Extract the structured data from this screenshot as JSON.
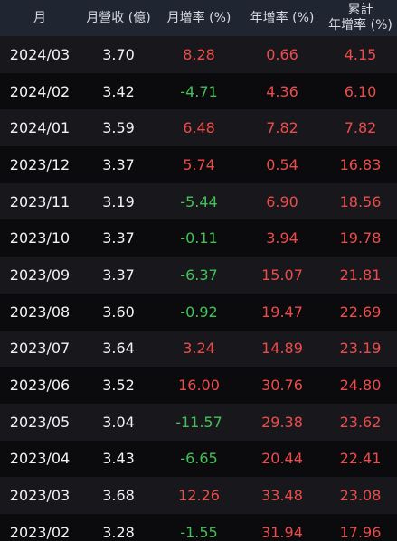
{
  "headers": {
    "month": "月",
    "revenue": "月營收 (億)",
    "mom": "月增率 (%)",
    "yoy": "年增率 (%)",
    "cum_line1": "累計",
    "cum_line2": "年增率 (%)"
  },
  "colors": {
    "positive": "#ee4b4b",
    "negative": "#43c257",
    "header_bg": "#1f2632",
    "row_alt_bg": "#18181c"
  },
  "rows": [
    {
      "date": "2024/03",
      "revenue": "3.70",
      "mom": "8.28",
      "yoy": "0.66",
      "cum": "4.15"
    },
    {
      "date": "2024/02",
      "revenue": "3.42",
      "mom": "-4.71",
      "yoy": "4.36",
      "cum": "6.10"
    },
    {
      "date": "2024/01",
      "revenue": "3.59",
      "mom": "6.48",
      "yoy": "7.82",
      "cum": "7.82"
    },
    {
      "date": "2023/12",
      "revenue": "3.37",
      "mom": "5.74",
      "yoy": "0.54",
      "cum": "16.83"
    },
    {
      "date": "2023/11",
      "revenue": "3.19",
      "mom": "-5.44",
      "yoy": "6.90",
      "cum": "18.56"
    },
    {
      "date": "2023/10",
      "revenue": "3.37",
      "mom": "-0.11",
      "yoy": "3.94",
      "cum": "19.78"
    },
    {
      "date": "2023/09",
      "revenue": "3.37",
      "mom": "-6.37",
      "yoy": "15.07",
      "cum": "21.81"
    },
    {
      "date": "2023/08",
      "revenue": "3.60",
      "mom": "-0.92",
      "yoy": "19.47",
      "cum": "22.69"
    },
    {
      "date": "2023/07",
      "revenue": "3.64",
      "mom": "3.24",
      "yoy": "14.89",
      "cum": "23.19"
    },
    {
      "date": "2023/06",
      "revenue": "3.52",
      "mom": "16.00",
      "yoy": "30.76",
      "cum": "24.80"
    },
    {
      "date": "2023/05",
      "revenue": "3.04",
      "mom": "-11.57",
      "yoy": "29.38",
      "cum": "23.62"
    },
    {
      "date": "2023/04",
      "revenue": "3.43",
      "mom": "-6.65",
      "yoy": "20.44",
      "cum": "22.41"
    },
    {
      "date": "2023/03",
      "revenue": "3.68",
      "mom": "12.26",
      "yoy": "33.48",
      "cum": "23.08"
    },
    {
      "date": "2023/02",
      "revenue": "3.28",
      "mom": "-1.55",
      "yoy": "31.94",
      "cum": "17.96"
    }
  ]
}
